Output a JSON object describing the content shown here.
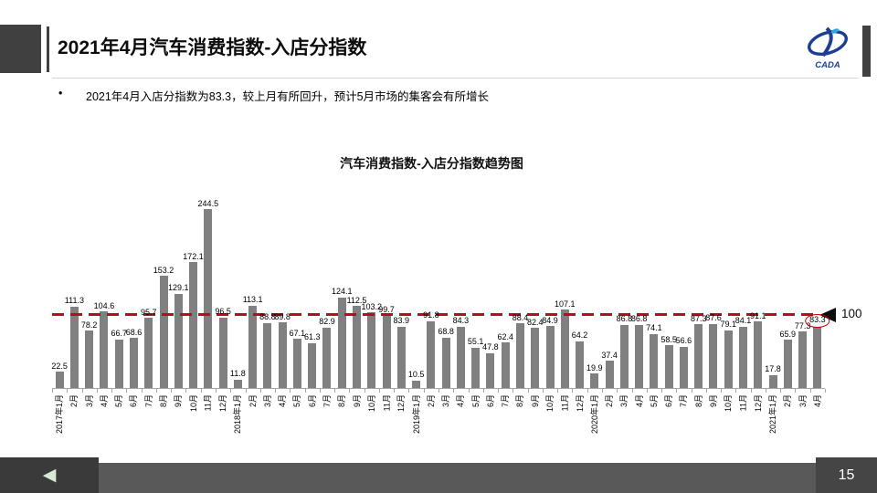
{
  "header": {
    "title": "2021年4月汽车消费指数-入店分指数",
    "bullet_marker": "•",
    "bullet": "2021年4月入店分指数为83.3，较上月有所回升，预计5月市场的集客会有所增长",
    "logo_text": "CADA"
  },
  "chart_data": {
    "type": "bar",
    "title": "汽车消费指数-入店分指数趋势图",
    "categories": [
      "2017年1月",
      "2月",
      "3月",
      "4月",
      "5月",
      "6月",
      "7月",
      "8月",
      "9月",
      "10月",
      "11月",
      "12月",
      "2018年1月",
      "2月",
      "3月",
      "4月",
      "5月",
      "6月",
      "7月",
      "8月",
      "9月",
      "10月",
      "11月",
      "12月",
      "2019年1月",
      "2月",
      "3月",
      "4月",
      "5月",
      "6月",
      "7月",
      "8月",
      "9月",
      "10月",
      "11月",
      "12月",
      "2020年1月",
      "2月",
      "3月",
      "4月",
      "5月",
      "6月",
      "7月",
      "8月",
      "9月",
      "10月",
      "11月",
      "12月",
      "2021年1月",
      "2月",
      "3月",
      "4月"
    ],
    "values": [
      22.5,
      111.3,
      78.2,
      104.6,
      66.7,
      68.6,
      95.7,
      153.2,
      129.1,
      172.1,
      244.5,
      96.5,
      11.8,
      113.1,
      88.8,
      89.8,
      67.1,
      61.3,
      82.9,
      124.1,
      112.5,
      103.2,
      99.7,
      83.9,
      10.5,
      91.8,
      68.8,
      84.3,
      55.1,
      47.8,
      62.4,
      88.4,
      82.4,
      84.9,
      107.1,
      64.2,
      19.9,
      37.4,
      86.8,
      86.8,
      74.1,
      58.5,
      56.6,
      87.3,
      87.6,
      79.1,
      84.1,
      91.1,
      17.8,
      65.9,
      77.3,
      83.3
    ],
    "bar_color": "#808080",
    "reference_line": {
      "value": 100,
      "label": "100",
      "color": "#b01120"
    },
    "highlight": {
      "index": 51,
      "note": "red ellipse around last value 83.3"
    },
    "ylim": [
      0,
      260
    ],
    "grid": false,
    "legend": false,
    "xlabel": "",
    "ylabel": ""
  },
  "footer": {
    "back_arrow": "◀",
    "page_number": "15"
  }
}
